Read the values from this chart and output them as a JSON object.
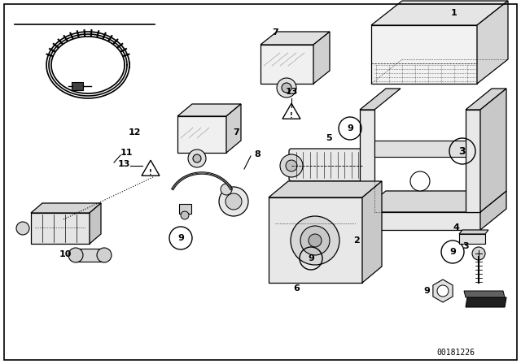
{
  "background_color": "#ffffff",
  "line_color": "#000000",
  "fig_width": 6.4,
  "fig_height": 4.48,
  "dpi": 100,
  "diagram_number": "00181226"
}
